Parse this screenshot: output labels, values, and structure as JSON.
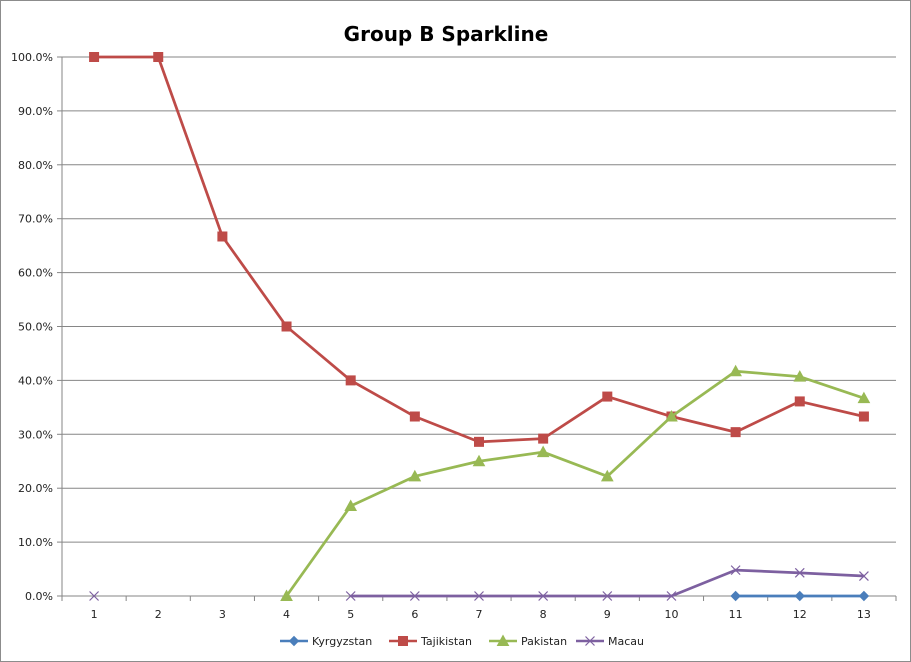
{
  "chart_data": {
    "type": "line",
    "title": "Group B Sparkline",
    "xlabel": "",
    "ylabel": "",
    "x": [
      1,
      2,
      3,
      4,
      5,
      6,
      7,
      8,
      9,
      10,
      11,
      12,
      13
    ],
    "ylim": [
      0,
      100
    ],
    "yticks": [
      "0.0%",
      "10.0%",
      "20.0%",
      "30.0%",
      "40.0%",
      "50.0%",
      "60.0%",
      "70.0%",
      "80.0%",
      "90.0%",
      "100.0%"
    ],
    "grid": true,
    "legend": "bottom",
    "series": [
      {
        "name": "Kyrgyzstan",
        "color": "#4a7ebb",
        "marker": "diamond",
        "values": [
          null,
          null,
          null,
          null,
          null,
          null,
          null,
          null,
          null,
          null,
          0,
          0,
          0
        ]
      },
      {
        "name": "Tajikistan",
        "color": "#be4b48",
        "marker": "square",
        "values": [
          100,
          100,
          66.7,
          50,
          40,
          33.3,
          28.6,
          29.2,
          37,
          33.3,
          30.4,
          36.1,
          33.3
        ]
      },
      {
        "name": "Pakistan",
        "color": "#98b954",
        "marker": "triangle",
        "values": [
          null,
          null,
          null,
          0,
          16.7,
          22.2,
          25,
          26.7,
          22.2,
          33.3,
          41.7,
          40.7,
          36.7
        ]
      },
      {
        "name": "Macau",
        "color": "#7d60a0",
        "marker": "x",
        "values": [
          0,
          null,
          null,
          null,
          0,
          0,
          0,
          0,
          0,
          0,
          4.8,
          4.3,
          3.7
        ]
      }
    ]
  }
}
